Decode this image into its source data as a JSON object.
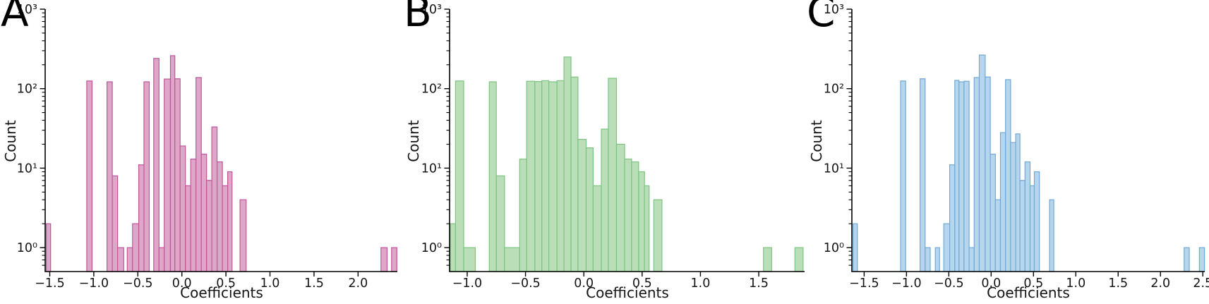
{
  "figure": {
    "background": "#ffffff",
    "kind": "three-panel histogram figure"
  },
  "chart_data": [
    {
      "type": "bar",
      "subtype": "histogram",
      "panel_label": "A",
      "xlabel": "Coefficients",
      "ylabel": "Count",
      "yscale": "log",
      "grid": false,
      "legend": "none",
      "xlim": [
        -1.552,
        2.446
      ],
      "ylim": [
        0.5,
        1000
      ],
      "xtick_values": [
        -1.5,
        -1.0,
        -0.5,
        0.0,
        0.5,
        1.0,
        1.5,
        2.0
      ],
      "xtick_labels": [
        "−1.5",
        "−1.0",
        "−0.5",
        "0.0",
        "0.5",
        "1.0",
        "1.5",
        "2.0"
      ],
      "ytick_values": [
        1,
        10,
        100,
        1000
      ],
      "ytick_labels": [
        "10⁰",
        "10¹",
        "10²",
        "10³"
      ],
      "colors": {
        "fill": "#dea7c7",
        "edge": "#c0559d"
      },
      "bars": [
        [
          -1.54,
          -1.49,
          2
        ],
        [
          -1.08,
          -1.02,
          125
        ],
        [
          -0.85,
          -0.79,
          122
        ],
        [
          -0.79,
          -0.73,
          8
        ],
        [
          -0.73,
          -0.66,
          1
        ],
        [
          -0.62,
          -0.56,
          1
        ],
        [
          -0.56,
          -0.49,
          2
        ],
        [
          -0.49,
          -0.43,
          11
        ],
        [
          -0.43,
          -0.37,
          122
        ],
        [
          -0.32,
          -0.26,
          240
        ],
        [
          -0.26,
          -0.2,
          1
        ],
        [
          -0.2,
          -0.13,
          132
        ],
        [
          -0.13,
          -0.08,
          260
        ],
        [
          -0.08,
          -0.02,
          133
        ],
        [
          -0.02,
          0.04,
          19
        ],
        [
          0.04,
          0.1,
          6
        ],
        [
          0.1,
          0.16,
          13
        ],
        [
          0.16,
          0.22,
          138
        ],
        [
          0.22,
          0.28,
          15
        ],
        [
          0.28,
          0.34,
          7
        ],
        [
          0.34,
          0.4,
          33
        ],
        [
          0.4,
          0.46,
          12
        ],
        [
          0.46,
          0.52,
          6
        ],
        [
          0.52,
          0.57,
          9
        ],
        [
          0.66,
          0.73,
          4
        ],
        [
          2.26,
          2.33,
          1
        ],
        [
          2.38,
          2.44,
          1
        ]
      ]
    },
    {
      "type": "bar",
      "subtype": "histogram",
      "panel_label": "B",
      "xlabel": "Coefficients",
      "ylabel": "Count",
      "yscale": "log",
      "grid": false,
      "legend": "none",
      "xlim": [
        -1.151,
        1.893
      ],
      "ylim": [
        0.5,
        1000
      ],
      "xtick_values": [
        -1.0,
        -0.5,
        0.0,
        0.5,
        1.0,
        1.5
      ],
      "xtick_labels": [
        "−1.0",
        "−0.5",
        "0.0",
        "0.5",
        "1.0",
        "1.5"
      ],
      "ytick_values": [
        1,
        10,
        100,
        1000
      ],
      "ytick_labels": [
        "10⁰",
        "10¹",
        "10²",
        "10³"
      ],
      "colors": {
        "fill": "#badeb7",
        "edge": "#7cc480"
      },
      "bars": [
        [
          -1.145,
          -1.1,
          2
        ],
        [
          -1.1,
          -1.03,
          125
        ],
        [
          -1.03,
          -0.93,
          1
        ],
        [
          -0.81,
          -0.75,
          122
        ],
        [
          -0.75,
          -0.68,
          8
        ],
        [
          -0.68,
          -0.55,
          1
        ],
        [
          -0.55,
          -0.49,
          13
        ],
        [
          -0.49,
          -0.42,
          124
        ],
        [
          -0.42,
          -0.36,
          123
        ],
        [
          -0.36,
          -0.3,
          126
        ],
        [
          -0.3,
          -0.23,
          122
        ],
        [
          -0.23,
          -0.17,
          126
        ],
        [
          -0.17,
          -0.11,
          250
        ],
        [
          -0.11,
          -0.05,
          140
        ],
        [
          -0.05,
          0.02,
          23
        ],
        [
          0.02,
          0.08,
          18
        ],
        [
          0.08,
          0.15,
          6
        ],
        [
          0.15,
          0.21,
          31
        ],
        [
          0.21,
          0.28,
          135
        ],
        [
          0.28,
          0.35,
          20
        ],
        [
          0.35,
          0.41,
          13
        ],
        [
          0.41,
          0.47,
          12
        ],
        [
          0.47,
          0.52,
          9
        ],
        [
          0.52,
          0.56,
          6
        ],
        [
          0.6,
          0.67,
          4
        ],
        [
          1.54,
          1.61,
          1
        ],
        [
          1.81,
          1.88,
          1
        ]
      ]
    },
    {
      "type": "bar",
      "subtype": "histogram",
      "panel_label": "C",
      "xlabel": "Coefficients",
      "ylabel": "Count",
      "yscale": "log",
      "grid": false,
      "legend": "none",
      "xlim": [
        -1.645,
        2.523
      ],
      "ylim": [
        0.5,
        1000
      ],
      "xtick_values": [
        -1.5,
        -1.0,
        -0.5,
        0.0,
        0.5,
        1.0,
        1.5,
        2.0,
        2.5
      ],
      "xtick_labels": [
        "−1.5",
        "−1.0",
        "−0.5",
        "0.0",
        "0.5",
        "1.0",
        "1.5",
        "2.0",
        "2.5"
      ],
      "ytick_values": [
        1,
        10,
        100,
        1000
      ],
      "ytick_labels": [
        "10⁰",
        "10¹",
        "10²",
        "10³"
      ],
      "colors": {
        "fill": "#b6d6ee",
        "edge": "#71a8d5"
      },
      "bars": [
        [
          -1.63,
          -1.58,
          2
        ],
        [
          -1.07,
          -1.01,
          125
        ],
        [
          -0.84,
          -0.78,
          133
        ],
        [
          -0.78,
          -0.72,
          1
        ],
        [
          -0.66,
          -0.61,
          1
        ],
        [
          -0.56,
          -0.49,
          2
        ],
        [
          -0.49,
          -0.43,
          11
        ],
        [
          -0.43,
          -0.38,
          127
        ],
        [
          -0.38,
          -0.32,
          122
        ],
        [
          -0.32,
          -0.26,
          124
        ],
        [
          -0.26,
          -0.2,
          1
        ],
        [
          -0.2,
          -0.14,
          138
        ],
        [
          -0.14,
          -0.07,
          265
        ],
        [
          -0.07,
          -0.01,
          140
        ],
        [
          -0.01,
          0.05,
          15
        ],
        [
          0.05,
          0.11,
          4
        ],
        [
          0.11,
          0.17,
          28
        ],
        [
          0.17,
          0.23,
          130
        ],
        [
          0.23,
          0.29,
          21
        ],
        [
          0.29,
          0.34,
          27
        ],
        [
          0.34,
          0.4,
          7
        ],
        [
          0.4,
          0.46,
          12
        ],
        [
          0.46,
          0.51,
          6
        ],
        [
          0.51,
          0.57,
          9
        ],
        [
          0.69,
          0.74,
          4
        ],
        [
          2.28,
          2.34,
          1
        ],
        [
          2.46,
          2.52,
          1
        ]
      ]
    }
  ]
}
